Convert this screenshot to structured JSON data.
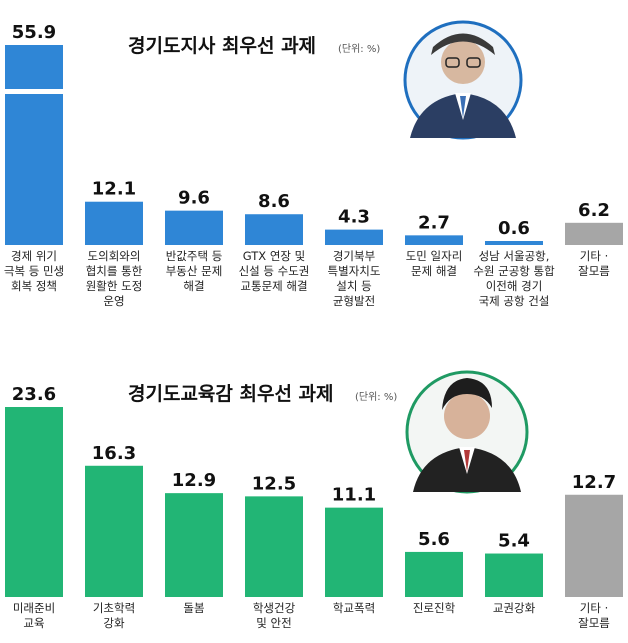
{
  "colors": {
    "governor": "#2f86d6",
    "education": "#22b575",
    "other": "#a6a6a6",
    "portrait_border_gov": "#1f6fbf",
    "portrait_border_edu": "#1f9a63"
  },
  "icons": {
    "governor_portrait": "portrait-icon",
    "education_portrait": "portrait-icon"
  },
  "chart_data": [
    {
      "type": "bar",
      "title": "경기도지사 최우선 과제",
      "unit": "(단위: %)",
      "series_color": "#2f86d6",
      "categories": [
        "경제 위기\n극복 등 민생\n회복 정책",
        "도의회와의\n협치를 통한\n원활한 도정\n운영",
        "반값주택 등\n부동산 문제\n해결",
        "GTX 연장 및\n신설 등 수도권\n교통문제 해결",
        "경기북부\n특별자치도\n설치 등\n균형발전",
        "도민 일자리\n문제 해결",
        "성남 서울공항,\n수원 군공항 통합\n이전해 경기\n국제 공항 건설",
        "기타 ·\n잘모름"
      ],
      "values": [
        55.9,
        12.1,
        9.6,
        8.6,
        4.3,
        2.7,
        0.6,
        6.2
      ],
      "value_labels": [
        "55.9",
        "12.1",
        "9.6",
        "8.6",
        "4.3",
        "2.7",
        "0.6",
        "6.2"
      ],
      "highlight_gray_last": true
    },
    {
      "type": "bar",
      "title": "경기도교육감 최우선 과제",
      "unit": "(단위: %)",
      "series_color": "#22b575",
      "categories": [
        "미래준비\n교육",
        "기초학력\n강화",
        "돌봄",
        "학생건강\n및 안전",
        "학교폭력",
        "진로진학",
        "교권강화",
        "기타 ·\n잘모름"
      ],
      "values": [
        23.6,
        16.3,
        12.9,
        12.5,
        11.1,
        5.6,
        5.4,
        12.7
      ],
      "value_labels": [
        "23.6",
        "16.3",
        "12.9",
        "12.5",
        "11.1",
        "5.6",
        "5.4",
        "12.7"
      ],
      "highlight_gray_last": true
    }
  ]
}
